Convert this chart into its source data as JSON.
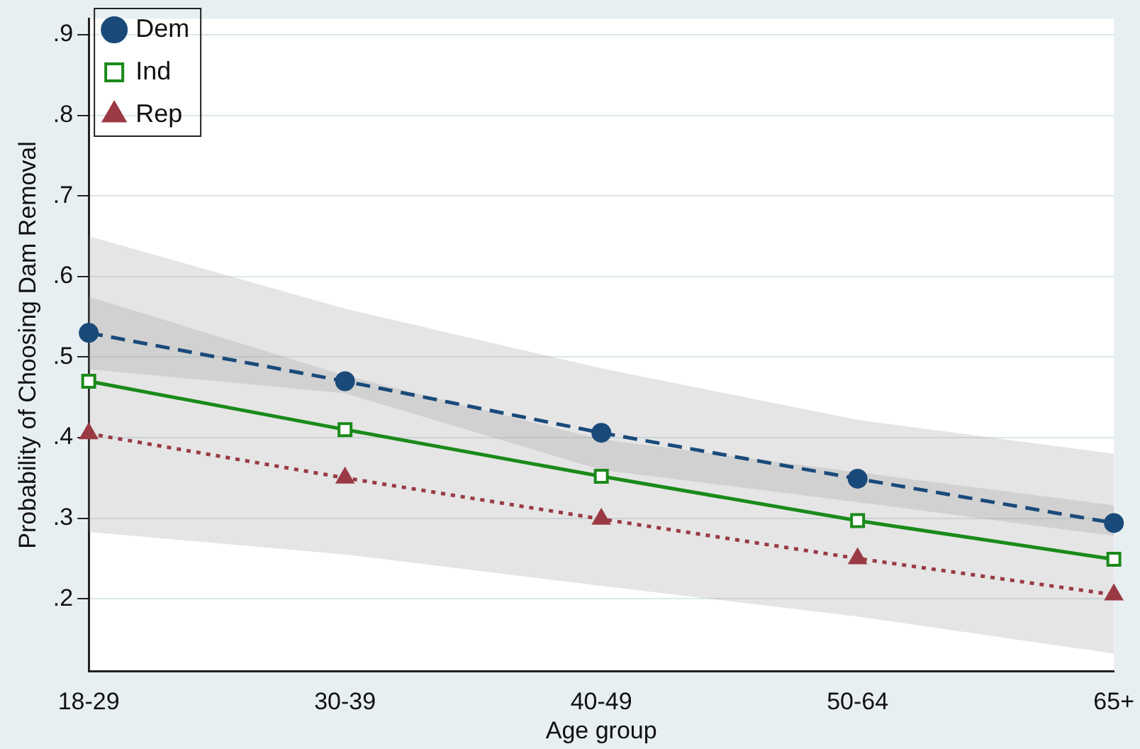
{
  "chart_data": {
    "type": "line",
    "xlabel": "Age group",
    "ylabel": "Probability of Choosing Dam Removal",
    "categories": [
      "18-29",
      "30-39",
      "40-49",
      "50-64",
      "65+"
    ],
    "series": [
      {
        "name": "Dem",
        "color": "#1a4a7a",
        "marker": "circle",
        "line_style": "dashed",
        "values": [
          0.53,
          0.47,
          0.406,
          0.349,
          0.294
        ],
        "lower": [
          0.485,
          0.455,
          0.36,
          0.32,
          0.278
        ],
        "upper": [
          0.575,
          0.477,
          0.398,
          0.357,
          0.316
        ]
      },
      {
        "name": "Ind",
        "color": "#1a8a1a",
        "marker": "square",
        "line_style": "solid",
        "values": [
          0.47,
          0.41,
          0.352,
          0.297,
          0.249
        ],
        "lower": [
          0.283,
          0.255,
          0.216,
          0.178,
          0.132
        ],
        "upper": [
          0.65,
          0.56,
          0.486,
          0.422,
          0.38
        ]
      },
      {
        "name": "Rep",
        "color": "#9a3a44",
        "marker": "triangle",
        "line_style": "dotted",
        "values": [
          0.405,
          0.35,
          0.299,
          0.25,
          0.205
        ]
      }
    ],
    "ylim": [
      0.11,
      0.92
    ],
    "yticks": [
      {
        "value": 0.2,
        "label": ".2"
      },
      {
        "value": 0.3,
        "label": ".3"
      },
      {
        "value": 0.4,
        "label": ".4"
      },
      {
        "value": 0.5,
        "label": ".5"
      },
      {
        "value": 0.6,
        "label": ".6"
      },
      {
        "value": 0.7,
        "label": ".7"
      },
      {
        "value": 0.8,
        "label": ".8"
      },
      {
        "value": 0.9,
        "label": ".9"
      }
    ],
    "grid": "y",
    "legend": "top left"
  }
}
